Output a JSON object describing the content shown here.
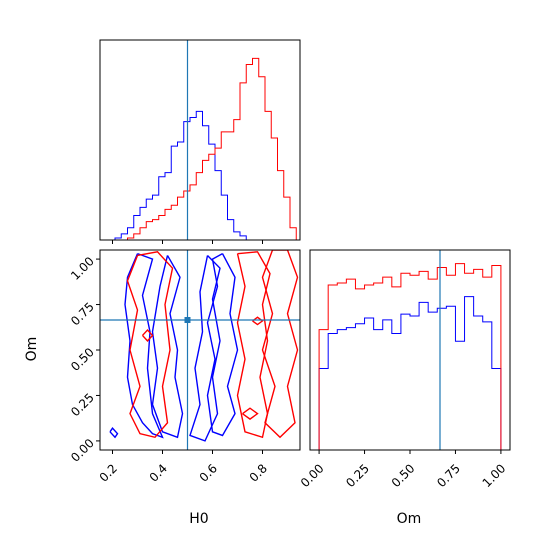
{
  "chart_data": [
    {
      "type": "histogram",
      "panel": "H0 marginal",
      "x_range": [
        0.15,
        0.95
      ],
      "y_range": [
        0,
        1
      ],
      "x_ticks": [
        0.2,
        0.4,
        0.6,
        0.8
      ],
      "show_x_tick_labels": false,
      "truth": {
        "x": 0.5
      },
      "series": [
        {
          "color": "#0000ff",
          "bin_edges": [
            0.21,
            0.235,
            0.26,
            0.285,
            0.31,
            0.335,
            0.36,
            0.385,
            0.41,
            0.435,
            0.46,
            0.485,
            0.51,
            0.535,
            0.56,
            0.585,
            0.61,
            0.635,
            0.66,
            0.685,
            0.71,
            0.735
          ],
          "counts": [
            0.01,
            0.03,
            0.06,
            0.12,
            0.16,
            0.2,
            0.22,
            0.31,
            0.33,
            0.46,
            0.48,
            0.58,
            0.6,
            0.63,
            0.56,
            0.47,
            0.34,
            0.22,
            0.1,
            0.04,
            0.02
          ]
        },
        {
          "color": "#ff0000",
          "bin_edges": [
            0.26,
            0.285,
            0.31,
            0.335,
            0.36,
            0.385,
            0.41,
            0.435,
            0.46,
            0.485,
            0.51,
            0.535,
            0.56,
            0.585,
            0.61,
            0.635,
            0.66,
            0.685,
            0.71,
            0.735,
            0.76,
            0.785,
            0.81,
            0.835,
            0.86,
            0.885,
            0.91,
            0.935
          ],
          "counts": [
            0.01,
            0.03,
            0.06,
            0.09,
            0.1,
            0.12,
            0.15,
            0.17,
            0.21,
            0.24,
            0.27,
            0.33,
            0.39,
            0.42,
            0.45,
            0.53,
            0.53,
            0.59,
            0.77,
            0.86,
            0.89,
            0.8,
            0.63,
            0.5,
            0.34,
            0.21,
            0.06
          ]
        }
      ]
    },
    {
      "type": "contour",
      "panel": "H0 vs Om",
      "xlabel": "H0",
      "ylabel": "Om",
      "x_range": [
        0.15,
        0.95
      ],
      "y_range": [
        -0.05,
        1.05
      ],
      "x_ticks": [
        0.2,
        0.4,
        0.6,
        0.8
      ],
      "x_tick_labels": [
        "0.2",
        "0.4",
        "0.6",
        "0.8"
      ],
      "y_ticks": [
        0.0,
        0.25,
        0.5,
        0.75,
        1.0
      ],
      "y_tick_labels": [
        "0.00",
        "0.25",
        "0.50",
        "0.75",
        "1.00"
      ],
      "truth": {
        "x": 0.5,
        "y": 0.665
      },
      "series": [
        {
          "color": "#0000ff",
          "contours": [
            [
              [
                0.3,
                1.03
              ],
              [
                0.26,
                0.9
              ],
              [
                0.25,
                0.75
              ],
              [
                0.27,
                0.55
              ],
              [
                0.26,
                0.35
              ],
              [
                0.28,
                0.2
              ],
              [
                0.32,
                0.1
              ],
              [
                0.36,
                0.04
              ],
              [
                0.4,
                0.02
              ],
              [
                0.36,
                0.15
              ],
              [
                0.34,
                0.4
              ],
              [
                0.35,
                0.6
              ],
              [
                0.32,
                0.8
              ],
              [
                0.36,
                1.0
              ],
              [
                0.3,
                1.03
              ]
            ],
            [
              [
                0.42,
                1.02
              ],
              [
                0.39,
                0.85
              ],
              [
                0.36,
                0.6
              ],
              [
                0.38,
                0.4
              ],
              [
                0.36,
                0.2
              ],
              [
                0.4,
                0.05
              ],
              [
                0.46,
                0.02
              ],
              [
                0.48,
                0.15
              ],
              [
                0.45,
                0.35
              ],
              [
                0.46,
                0.5
              ],
              [
                0.43,
                0.7
              ],
              [
                0.47,
                0.9
              ],
              [
                0.42,
                1.02
              ]
            ],
            [
              [
                0.58,
                1.02
              ],
              [
                0.55,
                0.82
              ],
              [
                0.56,
                0.6
              ],
              [
                0.53,
                0.4
              ],
              [
                0.55,
                0.2
              ],
              [
                0.51,
                0.03
              ],
              [
                0.57,
                0.0
              ],
              [
                0.62,
                0.15
              ],
              [
                0.6,
                0.35
              ],
              [
                0.63,
                0.55
              ],
              [
                0.6,
                0.78
              ],
              [
                0.63,
                0.95
              ],
              [
                0.58,
                1.02
              ]
            ],
            [
              [
                0.64,
                1.03
              ],
              [
                0.69,
                0.9
              ],
              [
                0.67,
                0.7
              ],
              [
                0.7,
                0.5
              ],
              [
                0.66,
                0.3
              ],
              [
                0.69,
                0.15
              ],
              [
                0.64,
                0.03
              ],
              [
                0.6,
                0.05
              ],
              [
                0.58,
                0.25
              ],
              [
                0.61,
                0.45
              ],
              [
                0.58,
                0.65
              ],
              [
                0.62,
                0.85
              ],
              [
                0.6,
                1.0
              ],
              [
                0.64,
                1.03
              ]
            ],
            [
              [
                0.19,
                0.05
              ],
              [
                0.21,
                0.02
              ],
              [
                0.22,
                0.04
              ],
              [
                0.2,
                0.07
              ],
              [
                0.19,
                0.05
              ]
            ]
          ]
        },
        {
          "color": "#ff0000",
          "contours": [
            [
              [
                0.3,
                1.02
              ],
              [
                0.26,
                0.88
              ],
              [
                0.3,
                0.72
              ],
              [
                0.27,
                0.5
              ],
              [
                0.31,
                0.3
              ],
              [
                0.27,
                0.15
              ],
              [
                0.31,
                0.04
              ],
              [
                0.37,
                0.02
              ],
              [
                0.42,
                0.1
              ],
              [
                0.4,
                0.3
              ],
              [
                0.43,
                0.5
              ],
              [
                0.41,
                0.75
              ],
              [
                0.44,
                0.95
              ],
              [
                0.38,
                1.04
              ],
              [
                0.3,
                1.02
              ]
            ],
            [
              [
                0.7,
                1.03
              ],
              [
                0.73,
                0.85
              ],
              [
                0.7,
                0.65
              ],
              [
                0.73,
                0.45
              ],
              [
                0.7,
                0.25
              ],
              [
                0.73,
                0.05
              ],
              [
                0.8,
                0.02
              ],
              [
                0.82,
                0.15
              ],
              [
                0.79,
                0.35
              ],
              [
                0.82,
                0.55
              ],
              [
                0.8,
                0.75
              ],
              [
                0.83,
                0.92
              ],
              [
                0.78,
                1.04
              ],
              [
                0.7,
                1.03
              ]
            ],
            [
              [
                0.84,
                1.05
              ],
              [
                0.8,
                0.9
              ],
              [
                0.84,
                0.7
              ],
              [
                0.8,
                0.5
              ],
              [
                0.85,
                0.3
              ],
              [
                0.81,
                0.1
              ],
              [
                0.87,
                0.02
              ],
              [
                0.93,
                0.1
              ],
              [
                0.9,
                0.3
              ],
              [
                0.94,
                0.5
              ],
              [
                0.9,
                0.7
              ],
              [
                0.94,
                0.9
              ],
              [
                0.9,
                1.05
              ],
              [
                0.84,
                1.05
              ]
            ],
            [
              [
                0.76,
                0.66
              ],
              [
                0.78,
                0.64
              ],
              [
                0.8,
                0.66
              ],
              [
                0.78,
                0.68
              ],
              [
                0.76,
                0.66
              ]
            ],
            [
              [
                0.32,
                0.58
              ],
              [
                0.34,
                0.55
              ],
              [
                0.36,
                0.58
              ],
              [
                0.34,
                0.61
              ],
              [
                0.32,
                0.58
              ]
            ],
            [
              [
                0.72,
                0.15
              ],
              [
                0.75,
                0.12
              ],
              [
                0.78,
                0.15
              ],
              [
                0.75,
                0.18
              ],
              [
                0.72,
                0.15
              ]
            ]
          ]
        }
      ]
    },
    {
      "type": "histogram",
      "panel": "Om marginal",
      "xlabel": "Om",
      "x_range": [
        -0.05,
        1.05
      ],
      "y_range": [
        0,
        1
      ],
      "x_ticks": [
        0.0,
        0.25,
        0.5,
        0.75,
        1.0
      ],
      "x_tick_labels": [
        "0.00",
        "0.25",
        "0.50",
        "0.75",
        "1.00"
      ],
      "truth": {
        "x": 0.665
      },
      "series": [
        {
          "color": "#0000ff",
          "bin_edges": [
            0.0,
            0.05,
            0.1,
            0.15,
            0.2,
            0.25,
            0.3,
            0.35,
            0.4,
            0.45,
            0.5,
            0.55,
            0.6,
            0.65,
            0.7,
            0.75,
            0.8,
            0.85,
            0.9,
            0.95,
            1.0
          ],
          "counts": [
            0.42,
            0.6,
            0.62,
            0.63,
            0.65,
            0.68,
            0.62,
            0.67,
            0.6,
            0.7,
            0.69,
            0.76,
            0.71,
            0.73,
            0.74,
            0.56,
            0.79,
            0.69,
            0.66,
            0.42
          ]
        },
        {
          "color": "#ff0000",
          "bin_edges": [
            0.0,
            0.05,
            0.1,
            0.15,
            0.2,
            0.25,
            0.3,
            0.35,
            0.4,
            0.45,
            0.5,
            0.55,
            0.6,
            0.65,
            0.7,
            0.75,
            0.8,
            0.85,
            0.9,
            0.95,
            1.0
          ],
          "counts": [
            0.62,
            0.85,
            0.86,
            0.88,
            0.83,
            0.85,
            0.86,
            0.89,
            0.84,
            0.91,
            0.9,
            0.92,
            0.88,
            0.94,
            0.9,
            0.96,
            0.91,
            0.93,
            0.89,
            0.95
          ]
        }
      ]
    }
  ]
}
